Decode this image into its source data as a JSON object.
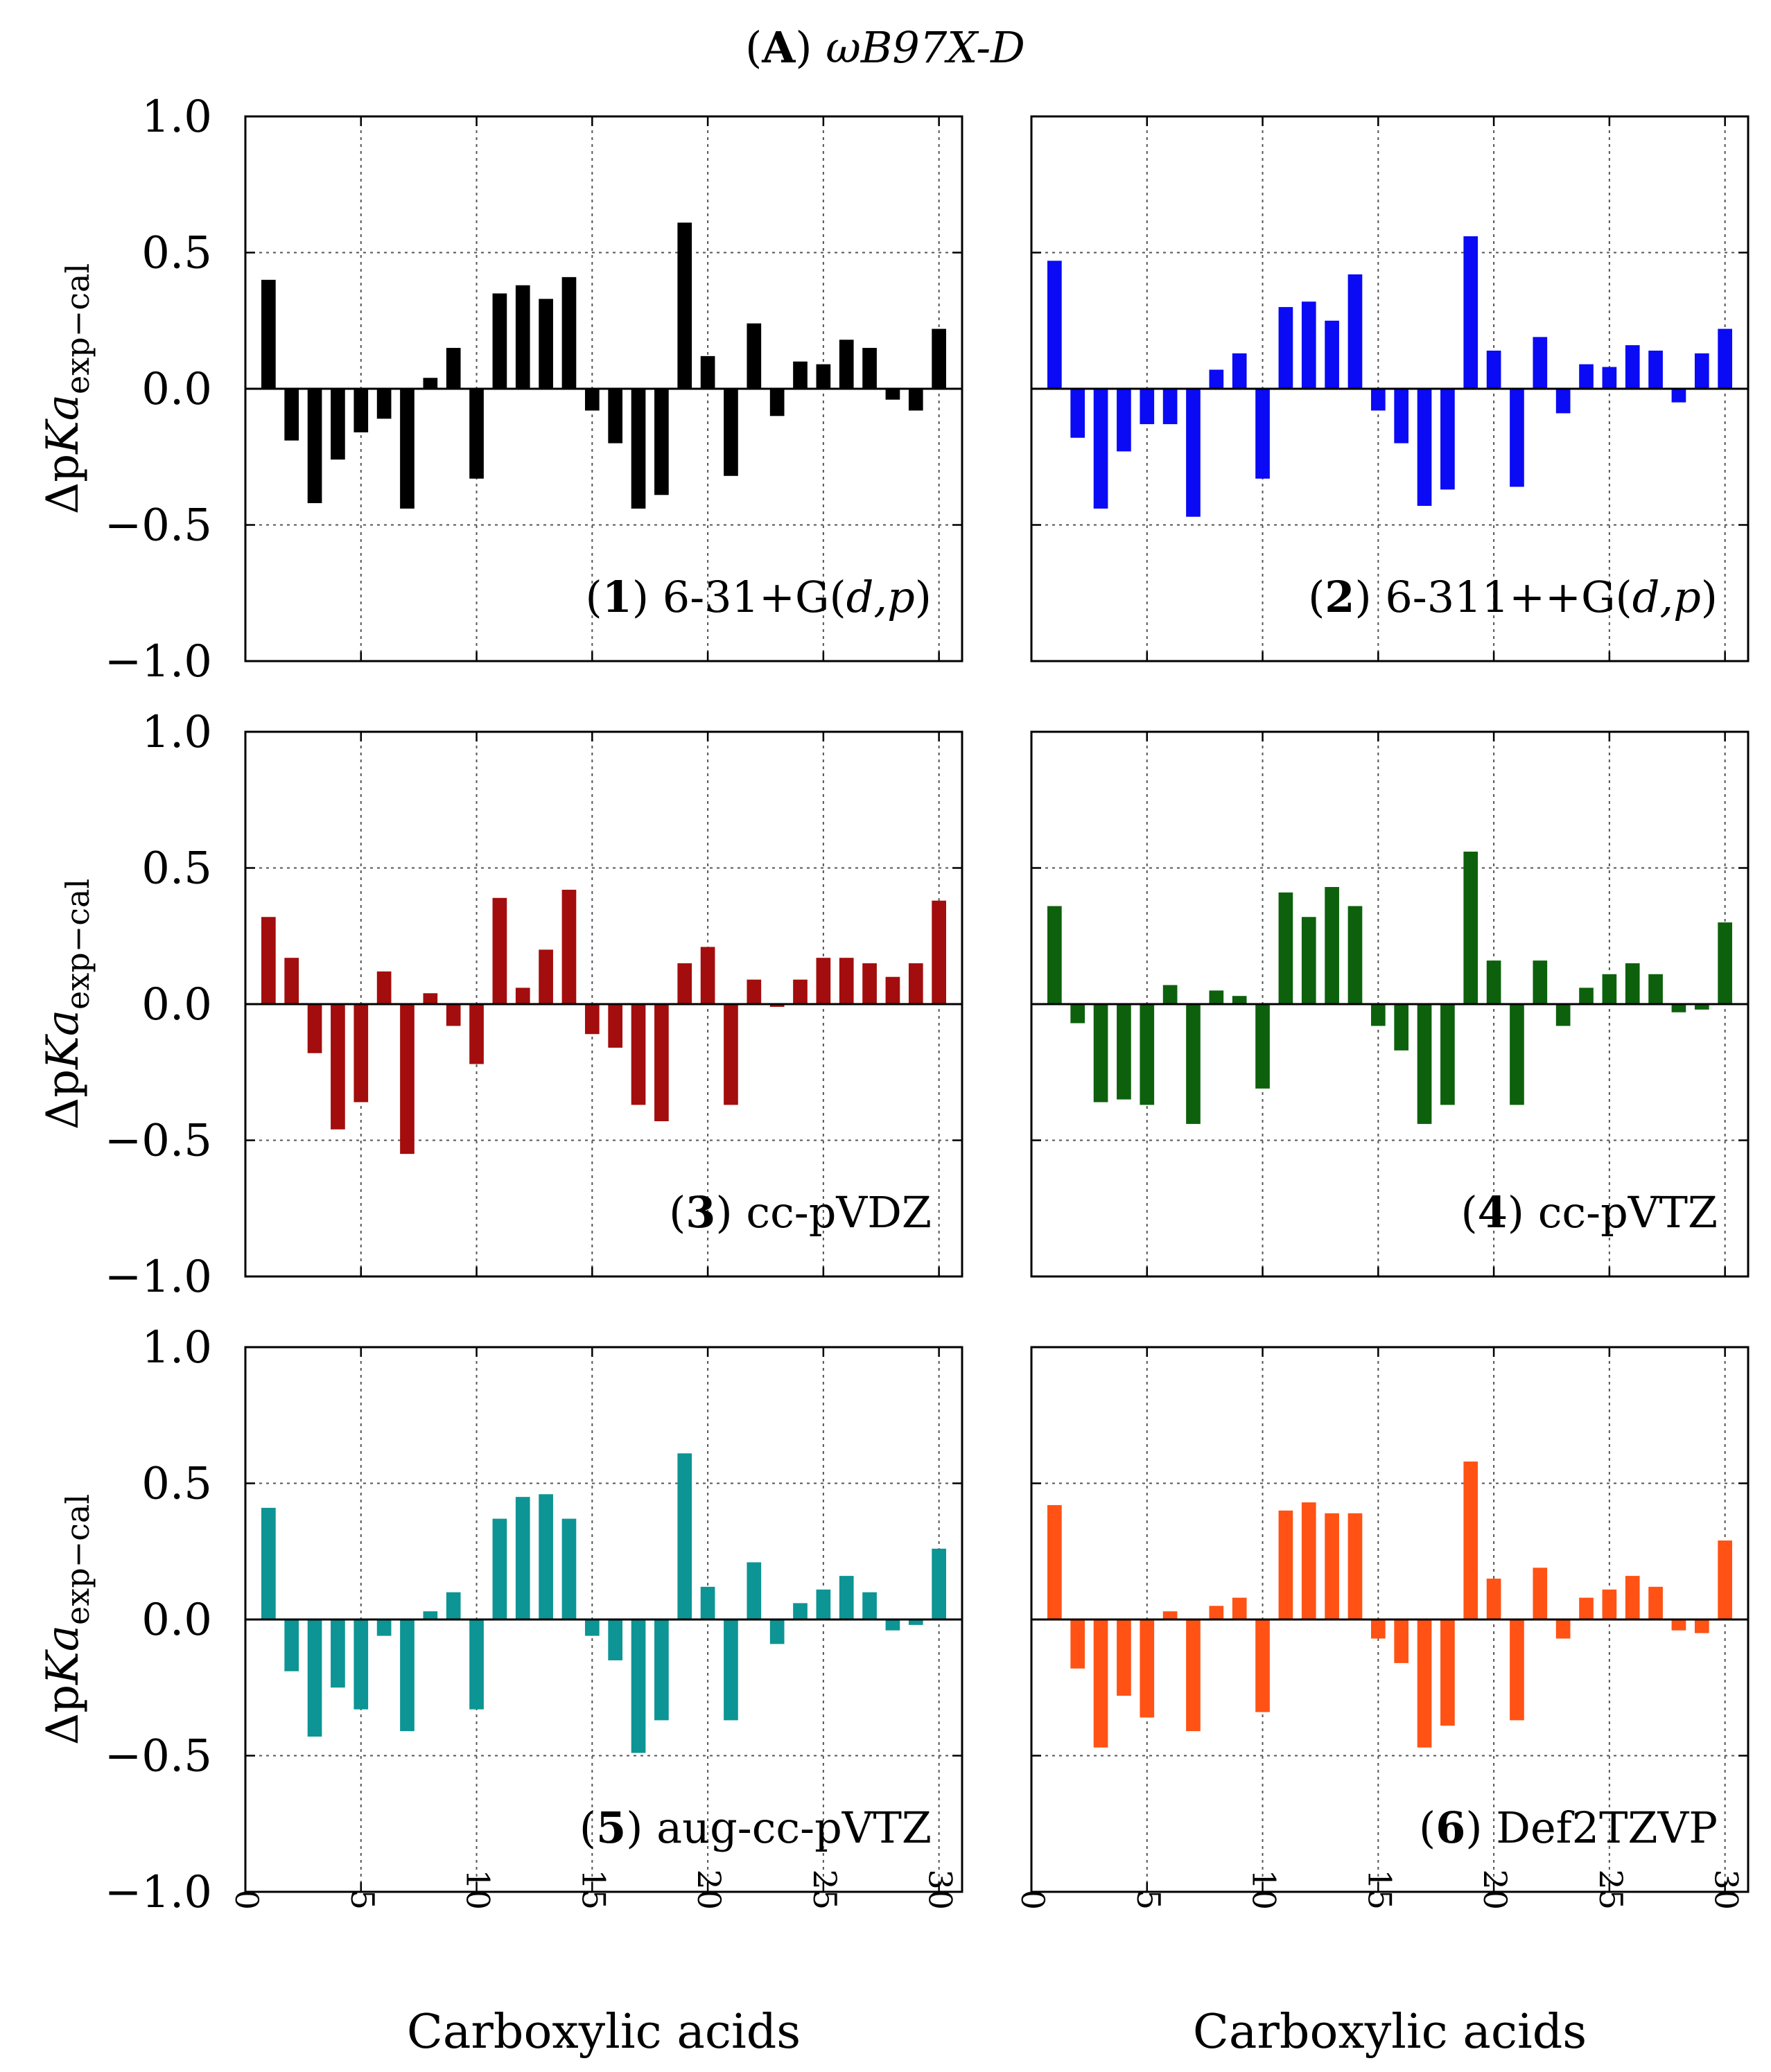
{
  "figure_title": {
    "label": "A",
    "method": "ωB97X-D"
  },
  "chart_data": [
    {
      "type": "bar",
      "panel_number": "1",
      "basis_set": "6-31+G(d,p)",
      "color": "#000000",
      "xlabel": "Carboxylic acids",
      "ylabel": "ΔpKa exp−cal",
      "ylim": [
        -1.0,
        1.0
      ],
      "xlim": [
        0,
        31
      ],
      "x": [
        1,
        2,
        3,
        4,
        5,
        6,
        7,
        8,
        9,
        10,
        11,
        12,
        13,
        14,
        15,
        16,
        17,
        18,
        19,
        20,
        21,
        22,
        23,
        24,
        25,
        26,
        27,
        28,
        29,
        30
      ],
      "values": [
        0.4,
        -0.19,
        -0.42,
        -0.26,
        -0.16,
        -0.11,
        -0.44,
        0.04,
        0.15,
        -0.33,
        0.35,
        0.38,
        0.33,
        0.41,
        -0.08,
        -0.2,
        -0.44,
        -0.39,
        0.61,
        0.12,
        -0.32,
        0.24,
        -0.1,
        0.1,
        0.09,
        0.18,
        0.15,
        -0.04,
        -0.08,
        0.22
      ]
    },
    {
      "type": "bar",
      "panel_number": "2",
      "basis_set": "6-311++G(d,p)",
      "color": "#0a0af5",
      "xlabel": "Carboxylic acids",
      "ylabel": "ΔpKa exp−cal",
      "ylim": [
        -1.0,
        1.0
      ],
      "xlim": [
        0,
        31
      ],
      "x": [
        1,
        2,
        3,
        4,
        5,
        6,
        7,
        8,
        9,
        10,
        11,
        12,
        13,
        14,
        15,
        16,
        17,
        18,
        19,
        20,
        21,
        22,
        23,
        24,
        25,
        26,
        27,
        28,
        29,
        30
      ],
      "values": [
        0.47,
        -0.18,
        -0.44,
        -0.23,
        -0.13,
        -0.13,
        -0.47,
        0.07,
        0.13,
        -0.33,
        0.3,
        0.32,
        0.25,
        0.42,
        -0.08,
        -0.2,
        -0.43,
        -0.37,
        0.56,
        0.14,
        -0.36,
        0.19,
        -0.09,
        0.09,
        0.08,
        0.16,
        0.14,
        -0.05,
        0.13,
        0.22
      ]
    },
    {
      "type": "bar",
      "panel_number": "3",
      "basis_set": "cc-pVDZ",
      "color": "#a30d0d",
      "xlabel": "Carboxylic acids",
      "ylabel": "ΔpKa exp−cal",
      "ylim": [
        -1.0,
        1.0
      ],
      "xlim": [
        0,
        31
      ],
      "x": [
        1,
        2,
        3,
        4,
        5,
        6,
        7,
        8,
        9,
        10,
        11,
        12,
        13,
        14,
        15,
        16,
        17,
        18,
        19,
        20,
        21,
        22,
        23,
        24,
        25,
        26,
        27,
        28,
        29,
        30
      ],
      "values": [
        0.32,
        0.17,
        -0.18,
        -0.46,
        -0.36,
        0.12,
        -0.55,
        0.04,
        -0.08,
        -0.22,
        0.39,
        0.06,
        0.2,
        0.42,
        -0.11,
        -0.16,
        -0.37,
        -0.43,
        0.15,
        0.21,
        -0.37,
        0.09,
        -0.01,
        0.09,
        0.17,
        0.17,
        0.15,
        0.1,
        0.15,
        0.38
      ]
    },
    {
      "type": "bar",
      "panel_number": "4",
      "basis_set": "cc-pVTZ",
      "color": "#0d610d",
      "xlabel": "Carboxylic acids",
      "ylabel": "ΔpKa exp−cal",
      "ylim": [
        -1.0,
        1.0
      ],
      "xlim": [
        0,
        31
      ],
      "x": [
        1,
        2,
        3,
        4,
        5,
        6,
        7,
        8,
        9,
        10,
        11,
        12,
        13,
        14,
        15,
        16,
        17,
        18,
        19,
        20,
        21,
        22,
        23,
        24,
        25,
        26,
        27,
        28,
        29,
        30
      ],
      "values": [
        0.36,
        -0.07,
        -0.36,
        -0.35,
        -0.37,
        0.07,
        -0.44,
        0.05,
        0.03,
        -0.31,
        0.41,
        0.32,
        0.43,
        0.36,
        -0.08,
        -0.17,
        -0.44,
        -0.37,
        0.56,
        0.16,
        -0.37,
        0.16,
        -0.08,
        0.06,
        0.11,
        0.15,
        0.11,
        -0.03,
        -0.02,
        0.3
      ]
    },
    {
      "type": "bar",
      "panel_number": "5",
      "basis_set": "aug-cc-pVTZ",
      "color": "#0d9494",
      "xlabel": "Carboxylic acids",
      "ylabel": "ΔpKa exp−cal",
      "ylim": [
        -1.0,
        1.0
      ],
      "xlim": [
        0,
        31
      ],
      "x": [
        1,
        2,
        3,
        4,
        5,
        6,
        7,
        8,
        9,
        10,
        11,
        12,
        13,
        14,
        15,
        16,
        17,
        18,
        19,
        20,
        21,
        22,
        23,
        24,
        25,
        26,
        27,
        28,
        29,
        30
      ],
      "values": [
        0.41,
        -0.19,
        -0.43,
        -0.25,
        -0.33,
        -0.06,
        -0.41,
        0.03,
        0.1,
        -0.33,
        0.37,
        0.45,
        0.46,
        0.37,
        -0.06,
        -0.15,
        -0.49,
        -0.37,
        0.61,
        0.12,
        -0.37,
        0.21,
        -0.09,
        0.06,
        0.11,
        0.16,
        0.1,
        -0.04,
        -0.02,
        0.26
      ]
    },
    {
      "type": "bar",
      "panel_number": "6",
      "basis_set": "Def2TZVP",
      "color": "#ff5214",
      "xlabel": "Carboxylic acids",
      "ylabel": "ΔpKa exp−cal",
      "ylim": [
        -1.0,
        1.0
      ],
      "xlim": [
        0,
        31
      ],
      "x": [
        1,
        2,
        3,
        4,
        5,
        6,
        7,
        8,
        9,
        10,
        11,
        12,
        13,
        14,
        15,
        16,
        17,
        18,
        19,
        20,
        21,
        22,
        23,
        24,
        25,
        26,
        27,
        28,
        29,
        30
      ],
      "values": [
        0.42,
        -0.18,
        -0.47,
        -0.28,
        -0.36,
        0.03,
        -0.41,
        0.05,
        0.08,
        -0.34,
        0.4,
        0.43,
        0.39,
        0.39,
        -0.07,
        -0.16,
        -0.47,
        -0.39,
        0.58,
        0.15,
        -0.37,
        0.19,
        -0.07,
        0.08,
        0.11,
        0.16,
        0.12,
        -0.04,
        -0.05,
        0.29
      ]
    }
  ],
  "axis": {
    "y_ticks": [
      "1.0",
      "0.5",
      "0.0",
      "−0.5",
      "−1.0"
    ],
    "y_tick_values": [
      1.0,
      0.5,
      0.0,
      -0.5,
      -1.0
    ],
    "x_ticks": [
      "0",
      "5",
      "10",
      "15",
      "20",
      "25",
      "30"
    ],
    "x_tick_values": [
      0,
      5,
      10,
      15,
      20,
      25,
      30
    ],
    "ylabel_main": "ΔpKa",
    "ylabel_sub": "exp−cal",
    "xlabel": "Carboxylic acids"
  }
}
